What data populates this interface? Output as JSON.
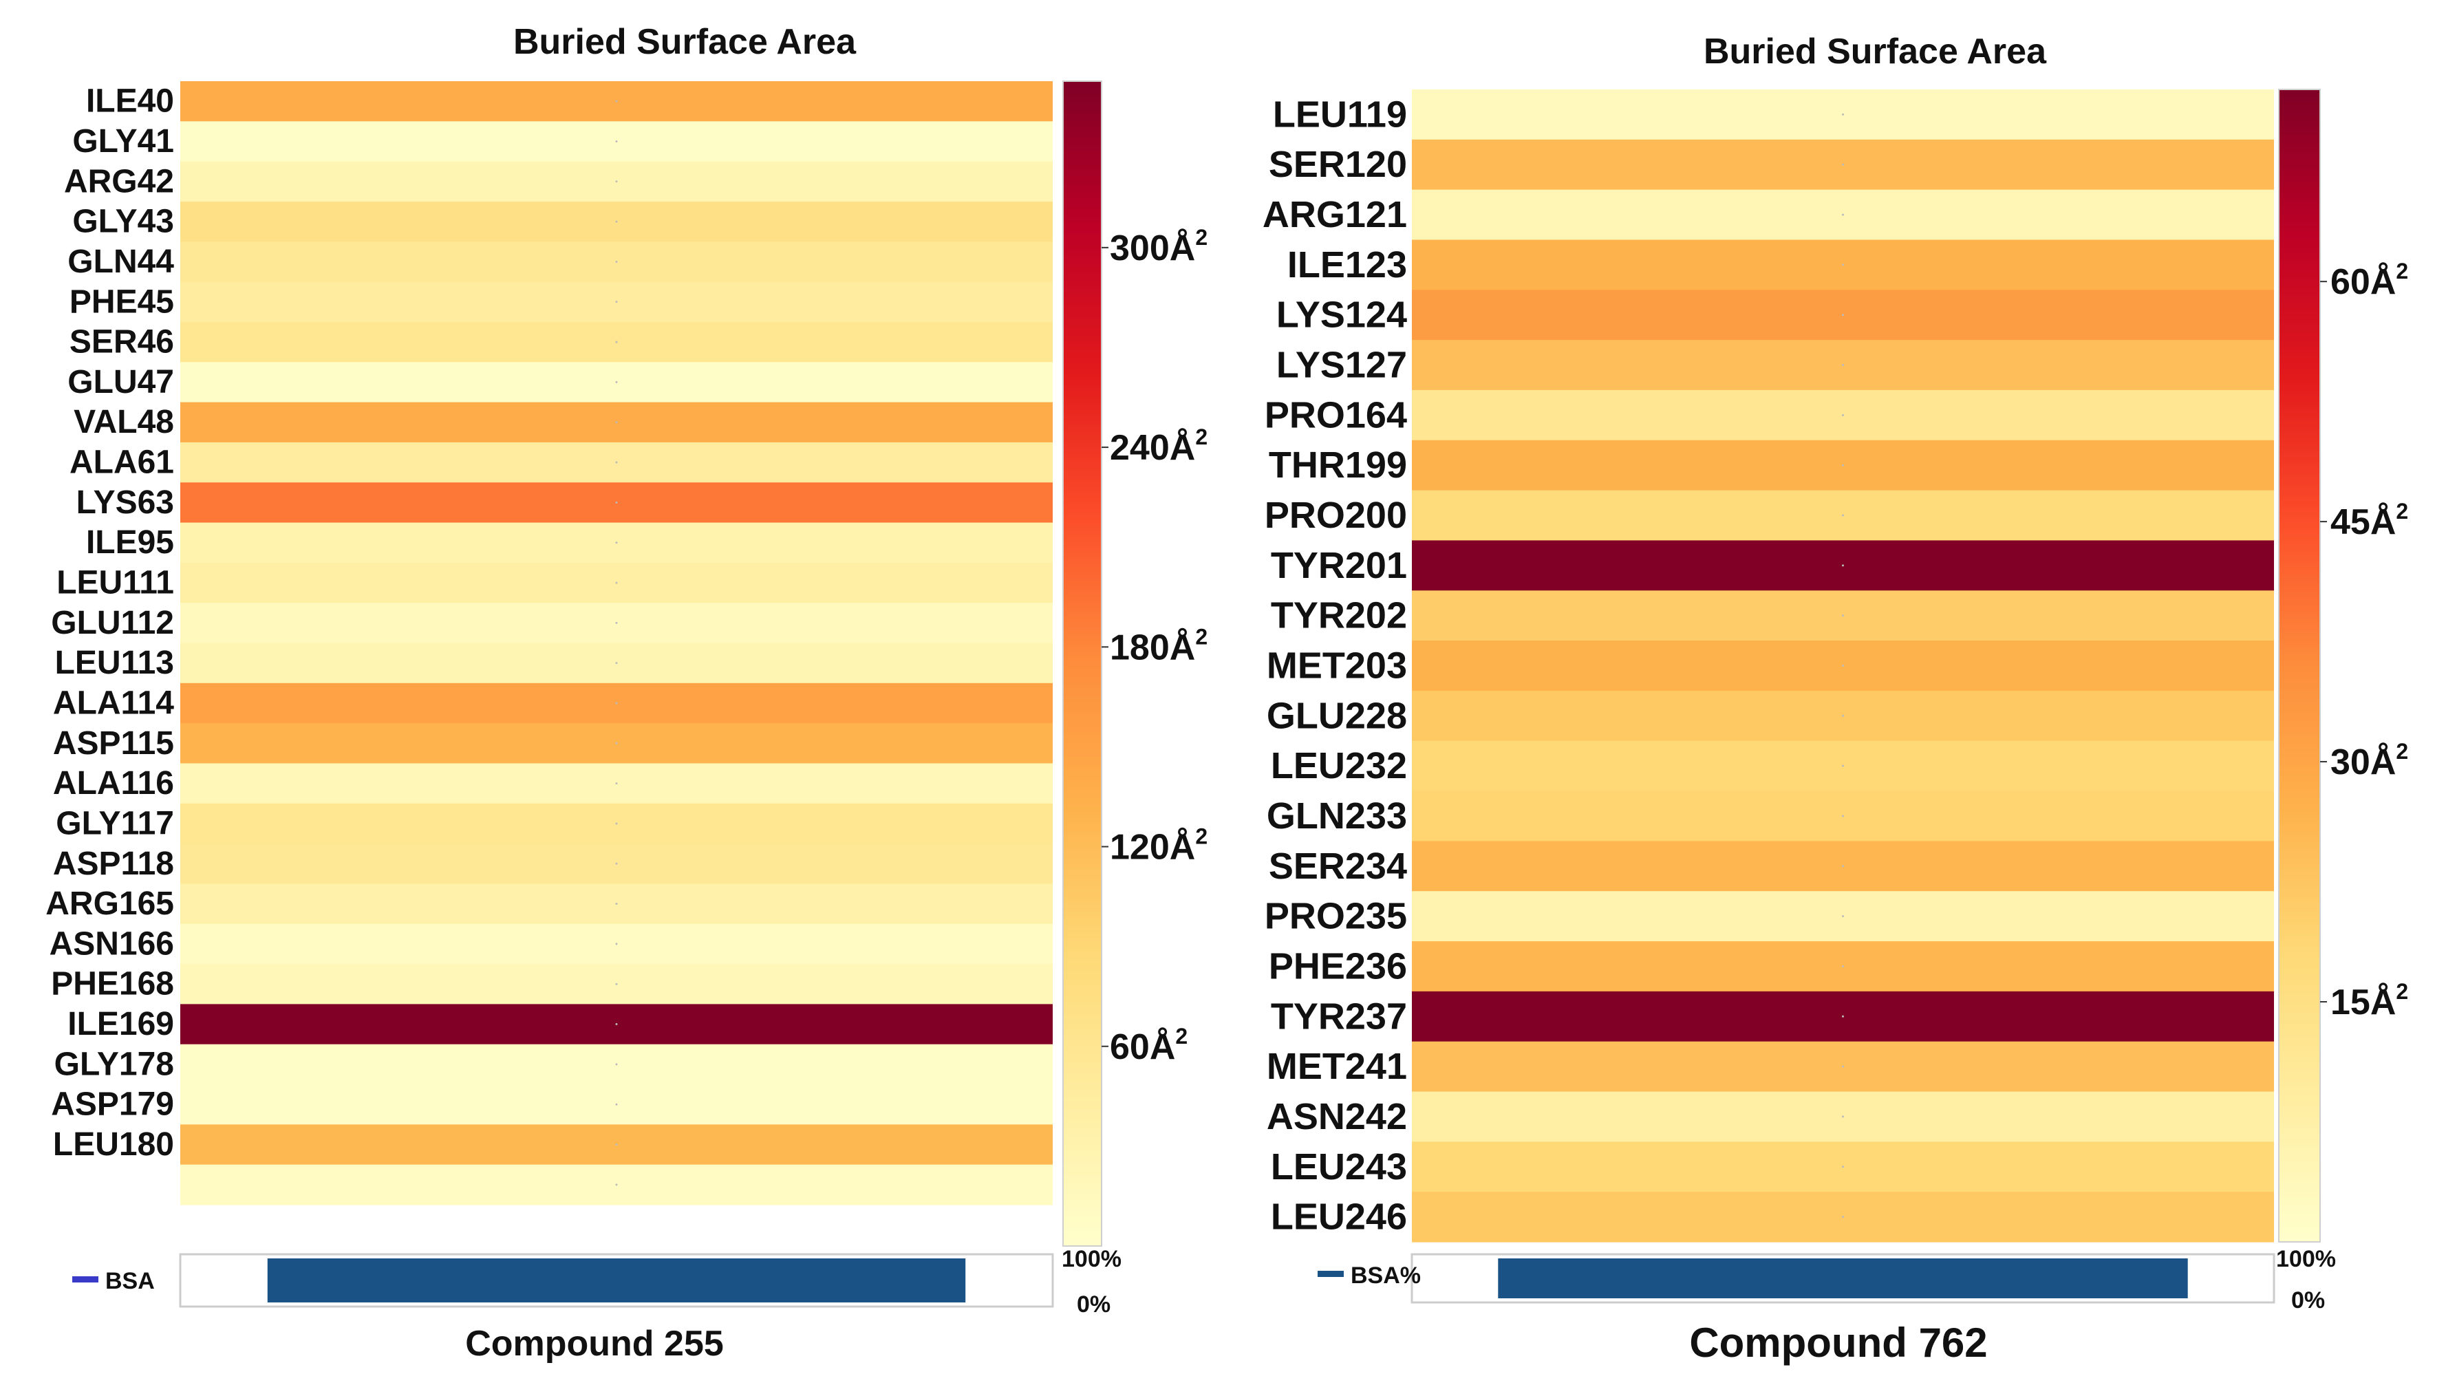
{
  "chart_data": [
    {
      "type": "heatmap",
      "title": "Buried Surface Area",
      "xlabel": "Compound 255",
      "unit": "Å",
      "unit_sup": "2",
      "rows": [
        "ILE40",
        "GLY41",
        "ARG42",
        "GLY43",
        "GLN44",
        "PHE45",
        "SER46",
        "GLU47",
        "VAL48",
        "ALA61",
        "LYS63",
        "ILE95",
        "LEU111",
        "GLU112",
        "LEU113",
        "ALA114",
        "ASP115",
        "ALA116",
        "GLY117",
        "ASP118",
        "ARG165",
        "ASN166",
        "PHE168",
        "ILE169",
        "GLY178",
        "ASP179",
        "LEU180",
        ""
      ],
      "values": [
        140,
        5,
        25,
        70,
        55,
        45,
        60,
        5,
        140,
        45,
        190,
        30,
        40,
        15,
        25,
        150,
        130,
        20,
        60,
        55,
        35,
        10,
        20,
        350,
        5,
        5,
        125,
        10
      ],
      "colorbar": {
        "min": 0,
        "max": 350,
        "ticks": [
          60,
          120,
          180,
          240,
          300
        ]
      },
      "bsa_bar": {
        "label": "BSA",
        "start_pct": 10,
        "end_pct": 90,
        "top_label": "100%",
        "bottom_label": "0%",
        "color": "#1a5286"
      }
    },
    {
      "type": "heatmap",
      "title": "Buried Surface Area",
      "xlabel": "Compound 762",
      "unit": "Å",
      "unit_sup": "2",
      "rows": [
        "LEU119",
        "SER120",
        "ARG121",
        "ILE123",
        "LYS124",
        "LYS127",
        "PRO164",
        "THR199",
        "PRO200",
        "TYR201",
        "TYR202",
        "MET203",
        "GLU228",
        "LEU232",
        "GLN233",
        "SER234",
        "PRO235",
        "PHE236",
        "TYR237",
        "MET241",
        "ASN242",
        "LEU243",
        "LEU246"
      ],
      "values": [
        3,
        25,
        5,
        27,
        32,
        24,
        12,
        27,
        17,
        72,
        21,
        27,
        22,
        18,
        19,
        26,
        6,
        26,
        72,
        24,
        8,
        18,
        22
      ],
      "colorbar": {
        "min": 0,
        "max": 72,
        "ticks": [
          15,
          30,
          45,
          60
        ]
      },
      "bsa_bar": {
        "label": "BSA%",
        "start_pct": 10,
        "end_pct": 90,
        "top_label": "100%",
        "bottom_label": "0%",
        "color": "#1a5286"
      }
    }
  ],
  "colors": {
    "scale": [
      "#ffffcc",
      "#ffeda0",
      "#fed976",
      "#feb24c",
      "#fd8d3c",
      "#fc4e2a",
      "#e31a1c",
      "#bd0026",
      "#800026"
    ]
  }
}
